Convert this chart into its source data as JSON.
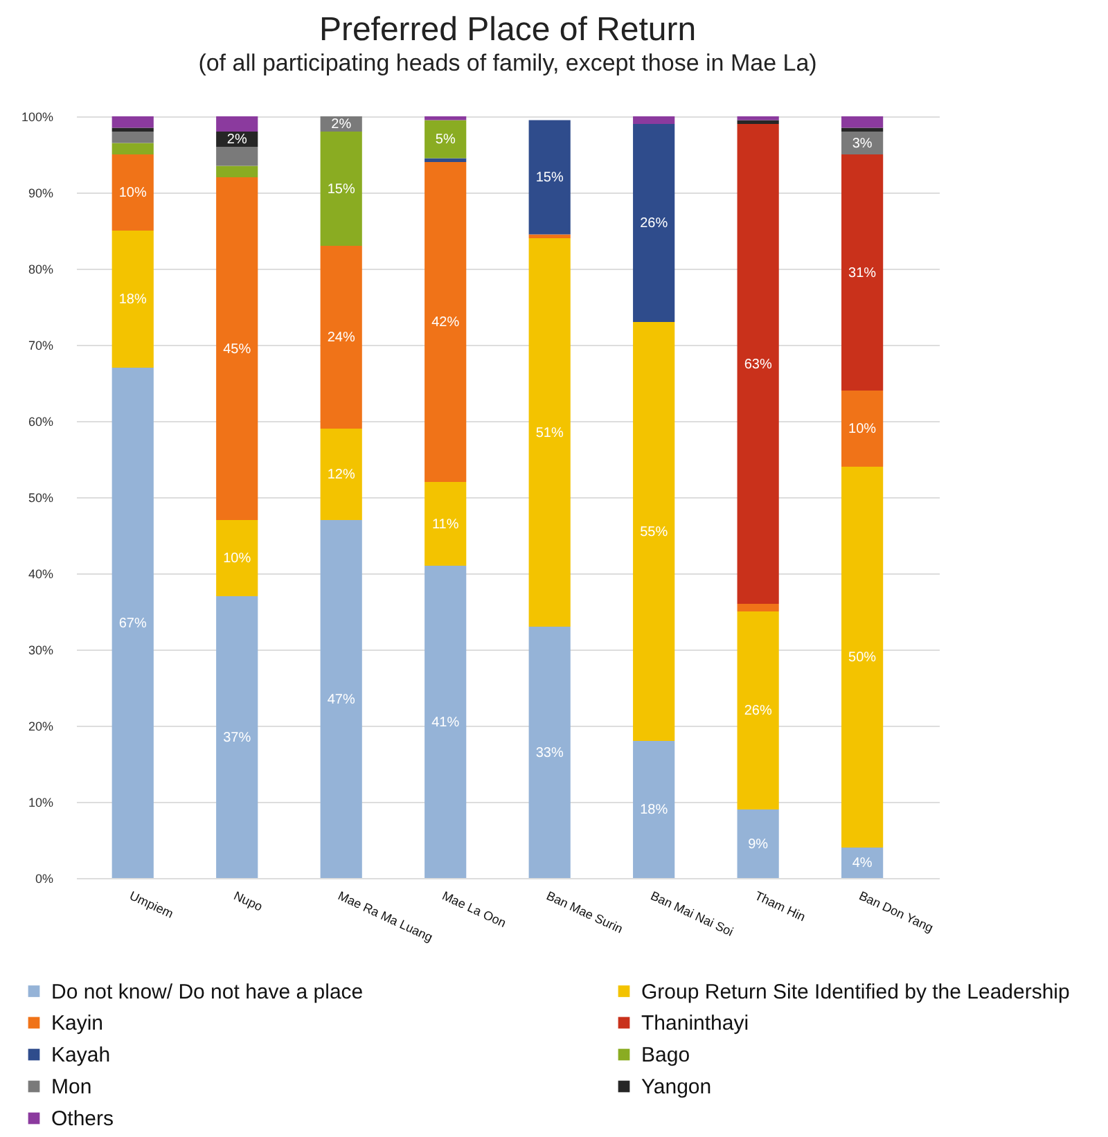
{
  "chart_data": {
    "type": "bar",
    "stacked": true,
    "title": "Preferred Place of Return",
    "subtitle": "(of all participating heads of family, except those in Mae La)",
    "categories": [
      "Umpiem",
      "Nupo",
      "Mae Ra Ma Luang",
      "Mae La Oon",
      "Ban Mae Surin",
      "Ban Mai Nai Soi",
      "Tham Hin",
      "Ban Don Yang"
    ],
    "ylim": [
      0,
      100
    ],
    "yticks": [
      {
        "value": 0,
        "label": "0%"
      },
      {
        "value": 10,
        "label": "10%"
      },
      {
        "value": 20,
        "label": "20%"
      },
      {
        "value": 30,
        "label": "30%"
      },
      {
        "value": 40,
        "label": "40%"
      },
      {
        "value": 50,
        "label": "50%"
      },
      {
        "value": 60,
        "label": "60%"
      },
      {
        "value": 70,
        "label": "70%"
      },
      {
        "value": 80,
        "label": "80%"
      },
      {
        "value": 90,
        "label": "90%"
      },
      {
        "value": 100,
        "label": "100%"
      }
    ],
    "grid": "y",
    "legend": "bottom",
    "series": [
      {
        "name": "Do not know/ Do not have a place",
        "color": "#95b3d7",
        "values": [
          67,
          37,
          47,
          41,
          33,
          18,
          9,
          4
        ],
        "value_labels": [
          "67%",
          "37%",
          "47%",
          "41%",
          "33%",
          "18%",
          "9%",
          "4%"
        ]
      },
      {
        "name": "Group Return Site Identified by the Leadership",
        "color": "#f3c300",
        "values": [
          18,
          10,
          12,
          11,
          51,
          55,
          26,
          50
        ],
        "value_labels": [
          "18%",
          "10%",
          "12%",
          "11%",
          "51%",
          "55%",
          "26%",
          "50%"
        ]
      },
      {
        "name": "Kayin",
        "color": "#f07318",
        "values": [
          10,
          45,
          24,
          42,
          0.5,
          0,
          1,
          10
        ],
        "value_labels": [
          "10%",
          "45%",
          "24%",
          "42%",
          null,
          null,
          null,
          "10%"
        ]
      },
      {
        "name": "Thaninthayi",
        "color": "#c9311b",
        "values": [
          0,
          0,
          0,
          0,
          0,
          0,
          63,
          31
        ],
        "value_labels": [
          null,
          null,
          null,
          null,
          null,
          null,
          "63%",
          "31%"
        ]
      },
      {
        "name": "Kayah",
        "color": "#2f4c8c",
        "values": [
          0,
          0,
          0,
          0.5,
          15,
          26,
          0,
          0
        ],
        "value_labels": [
          null,
          null,
          null,
          null,
          "15%",
          "26%",
          null,
          null
        ]
      },
      {
        "name": "Bago",
        "color": "#8aac22",
        "values": [
          1.5,
          1.5,
          15,
          5,
          0,
          0,
          0,
          0
        ],
        "value_labels": [
          null,
          null,
          "15%",
          "5%",
          null,
          null,
          null,
          null
        ]
      },
      {
        "name": "Mon",
        "color": "#7a7a7a",
        "values": [
          1.5,
          2.5,
          2,
          0,
          0,
          0,
          0,
          3
        ],
        "value_labels": [
          null,
          null,
          "2%",
          null,
          null,
          null,
          null,
          "3%"
        ]
      },
      {
        "name": "Yangon",
        "color": "#262626",
        "values": [
          0.5,
          2,
          0,
          0,
          0,
          0,
          0.5,
          0.5
        ],
        "value_labels": [
          null,
          "2%",
          null,
          null,
          null,
          null,
          null,
          null
        ]
      },
      {
        "name": "Others",
        "color": "#8b3a9e",
        "values": [
          1.5,
          2,
          0,
          0.5,
          0,
          1,
          0.5,
          1.5
        ]
      }
    ]
  }
}
